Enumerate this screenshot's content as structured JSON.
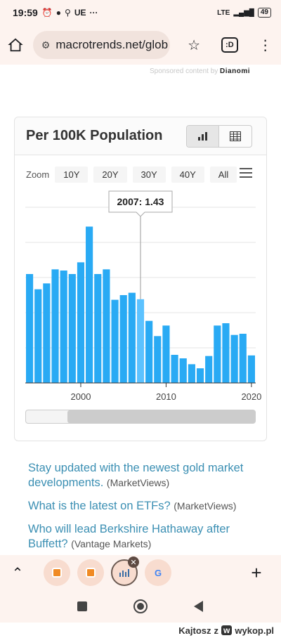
{
  "status": {
    "time": "19:59",
    "carrier": "UE",
    "network": "LTE",
    "battery": "49"
  },
  "browser": {
    "url": "macrotrends.net/glob",
    "tabs_label": ":D"
  },
  "sponsored": {
    "text": "Sponsored content by",
    "brand": "Dianomi"
  },
  "chart_card": {
    "title": "Per 100K Population",
    "zoom_label": "Zoom",
    "zoom_options": [
      "10Y",
      "20Y",
      "30Y",
      "40Y",
      "All"
    ]
  },
  "chart_data": {
    "type": "bar",
    "title": "Per 100K Population",
    "x": [
      1994,
      1995,
      1996,
      1997,
      1998,
      1999,
      2000,
      2001,
      2002,
      2003,
      2004,
      2005,
      2006,
      2007,
      2008,
      2009,
      2010,
      2011,
      2012,
      2013,
      2014,
      2015,
      2016,
      2017,
      2018,
      2019,
      2020
    ],
    "values": [
      1.86,
      1.6,
      1.7,
      1.94,
      1.92,
      1.86,
      2.06,
      2.67,
      1.86,
      1.94,
      1.42,
      1.5,
      1.54,
      1.43,
      1.06,
      0.8,
      0.98,
      0.48,
      0.42,
      0.32,
      0.25,
      0.46,
      0.98,
      1.02,
      0.82,
      0.84,
      0.47
    ],
    "xticks": [
      "2000",
      "2010",
      "2020"
    ],
    "ylim": [
      0,
      3.0
    ],
    "highlight": {
      "label": "2007: 1.43",
      "year": 2007
    },
    "grid": true
  },
  "links": [
    {
      "text": "Stay updated with the newest gold market developments.",
      "source": "(MarketViews)"
    },
    {
      "text": "What is the latest on ETFs?",
      "source": "(MarketViews)"
    },
    {
      "text": "Who will lead Berkshire Hathaway after Buffett?",
      "source": "(Vantage Markets)"
    }
  ],
  "colors": {
    "bar": "#29aaf4",
    "bar_highlight": "#5cc2ff",
    "link": "#3b8fb3"
  },
  "watermark": {
    "user": "Kajtosz",
    "sep": "z",
    "site": "wykop.pl"
  }
}
